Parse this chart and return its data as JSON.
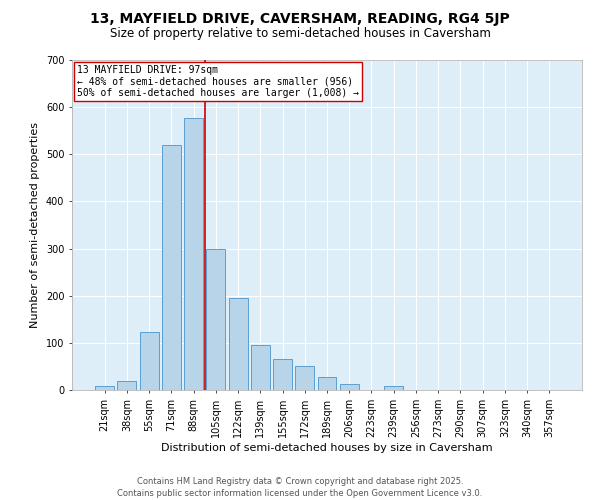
{
  "title": "13, MAYFIELD DRIVE, CAVERSHAM, READING, RG4 5JP",
  "subtitle": "Size of property relative to semi-detached houses in Caversham",
  "xlabel": "Distribution of semi-detached houses by size in Caversham",
  "ylabel": "Number of semi-detached properties",
  "categories": [
    "21sqm",
    "38sqm",
    "55sqm",
    "71sqm",
    "88sqm",
    "105sqm",
    "122sqm",
    "139sqm",
    "155sqm",
    "172sqm",
    "189sqm",
    "206sqm",
    "223sqm",
    "239sqm",
    "256sqm",
    "273sqm",
    "290sqm",
    "307sqm",
    "323sqm",
    "340sqm",
    "357sqm"
  ],
  "values": [
    8,
    20,
    122,
    520,
    578,
    300,
    196,
    95,
    65,
    50,
    28,
    12,
    0,
    8,
    0,
    0,
    0,
    0,
    0,
    0,
    0
  ],
  "bar_color": "#b8d4e8",
  "bar_edge_color": "#5a9fd4",
  "background_color": "#ddeef8",
  "grid_color": "#ffffff",
  "vline_x": 4.5,
  "vline_color": "#cc0000",
  "annotation_text": "13 MAYFIELD DRIVE: 97sqm\n← 48% of semi-detached houses are smaller (956)\n50% of semi-detached houses are larger (1,008) →",
  "annotation_box_color": "#ffffff",
  "annotation_box_edge": "#cc0000",
  "ylim": [
    0,
    700
  ],
  "yticks": [
    0,
    100,
    200,
    300,
    400,
    500,
    600,
    700
  ],
  "footer_line1": "Contains HM Land Registry data © Crown copyright and database right 2025.",
  "footer_line2": "Contains public sector information licensed under the Open Government Licence v3.0.",
  "title_fontsize": 10,
  "subtitle_fontsize": 8.5,
  "label_fontsize": 8,
  "tick_fontsize": 7,
  "annotation_fontsize": 7,
  "footer_fontsize": 6
}
